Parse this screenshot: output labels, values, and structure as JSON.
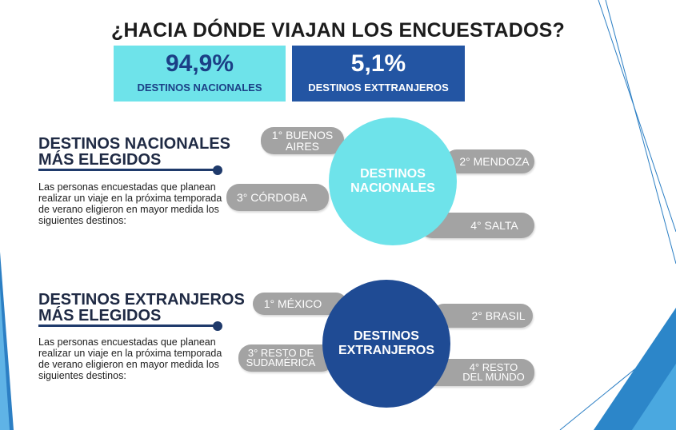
{
  "title": "¿HACIA DÓNDE VIAJAN LOS ENCUESTADOS?",
  "stats": {
    "nacional": {
      "value": "94,9%",
      "label": "DESTINOS NACIONALES"
    },
    "extranjero": {
      "value": "5,1%",
      "label": "DESTINOS EXTTRANJEROS"
    }
  },
  "nacionales": {
    "title_line1": "DESTINOS NACIONALES",
    "title_line2": "MÁS ELEGIDOS",
    "description": "Las personas encuestadas que planean realizar un viaje en la próxima temporada de verano eligieron en mayor medida los siguientes destinos:",
    "circle_line1": "DESTINOS",
    "circle_line2": "NACIONALES",
    "destinations": [
      {
        "line1": "1° BUENOS",
        "line2": "AIRES"
      },
      {
        "line1": "2° MENDOZA",
        "line2": ""
      },
      {
        "line1": "3° CÓRDOBA",
        "line2": ""
      },
      {
        "line1": "4° SALTA",
        "line2": ""
      }
    ]
  },
  "extranjeros": {
    "title_line1": "DESTINOS EXTRANJEROS",
    "title_line2": "MÁS ELEGIDOS",
    "description": "Las personas encuestadas que planean realizar un viaje en la próxima temporada de verano eligieron en mayor medida los siguientes destinos:",
    "circle_line1": "DESTINOS",
    "circle_line2": "EXTRANJEROS",
    "destinations": [
      {
        "line1": "1° MÉXICO",
        "line2": ""
      },
      {
        "line1": "2° BRASIL",
        "line2": ""
      },
      {
        "line1": "3° RESTO DE",
        "line2": "SUDAMÉRICA"
      },
      {
        "line1": "4° RESTO",
        "line2": "DEL MUNDO"
      }
    ]
  },
  "colors": {
    "turquoise": "#6ee3ea",
    "dark_blue": "#2355a3",
    "pill_gray": "#a3a3a3",
    "navy": "#1f3a6b"
  }
}
